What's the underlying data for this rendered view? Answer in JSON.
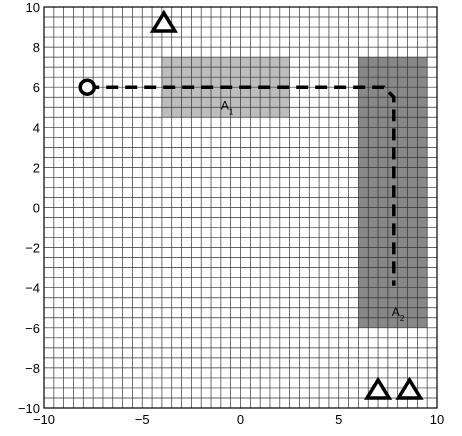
{
  "axes": {
    "xlim": [
      -10,
      10
    ],
    "ylim": [
      -10,
      10
    ],
    "grid_step": 0.5,
    "x_ticks": [
      {
        "value": -10,
        "label": "−10"
      },
      {
        "value": -5,
        "label": "−5"
      },
      {
        "value": 0,
        "label": "0"
      },
      {
        "value": 5,
        "label": "5"
      },
      {
        "value": 10,
        "label": "10"
      }
    ],
    "y_ticks": [
      {
        "value": 10,
        "label": "10"
      },
      {
        "value": 8,
        "label": "8"
      },
      {
        "value": 6,
        "label": "6"
      },
      {
        "value": 4,
        "label": "4"
      },
      {
        "value": 2,
        "label": "2"
      },
      {
        "value": 0,
        "label": "0"
      },
      {
        "value": -2,
        "label": "−2"
      },
      {
        "value": -4,
        "label": "−4"
      },
      {
        "value": -6,
        "label": "−6"
      },
      {
        "value": -8,
        "label": "−8"
      },
      {
        "value": -10,
        "label": "−10"
      }
    ]
  },
  "regions": [
    {
      "name": "A",
      "sub": "1",
      "x": [
        -4,
        2.5
      ],
      "y": [
        4.5,
        7.5
      ],
      "color": "#bdbdbd",
      "label_at": [
        -1,
        4.9
      ]
    },
    {
      "name": "A",
      "sub": "2",
      "x": [
        6,
        9.5
      ],
      "y": [
        -6,
        7.5
      ],
      "color": "#888888",
      "label_at": [
        7.7,
        -5.4
      ]
    }
  ],
  "start": {
    "x": -7.8,
    "y": 6
  },
  "obstacles": [
    {
      "x": -3.9,
      "y": 9.2
    },
    {
      "x": 7,
      "y": -9.1
    },
    {
      "x": 8.6,
      "y": -9.1
    }
  ],
  "path": [
    [
      -7.8,
      6
    ],
    [
      7.3,
      6
    ],
    [
      7.8,
      5.5
    ],
    [
      7.8,
      -3.9
    ]
  ],
  "colors": {
    "grid": "#333333",
    "background": "#ffffff",
    "path": "#000000"
  }
}
